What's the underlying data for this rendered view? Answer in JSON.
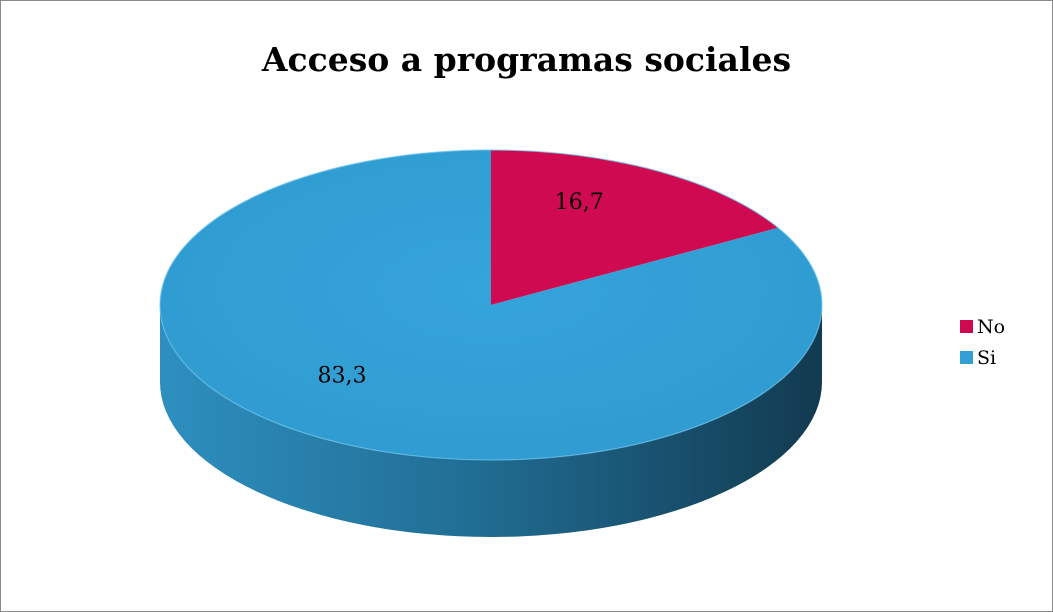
{
  "chart_data": {
    "type": "pie",
    "title": "Acceso a programas sociales",
    "style": "3d",
    "legend_position": "right",
    "series": [
      {
        "name": "No",
        "value": 16.7,
        "label": "16,7",
        "color": "#D00A50"
      },
      {
        "name": "Si",
        "value": 83.3,
        "label": "83,3",
        "color": "#32A0D6"
      }
    ]
  }
}
